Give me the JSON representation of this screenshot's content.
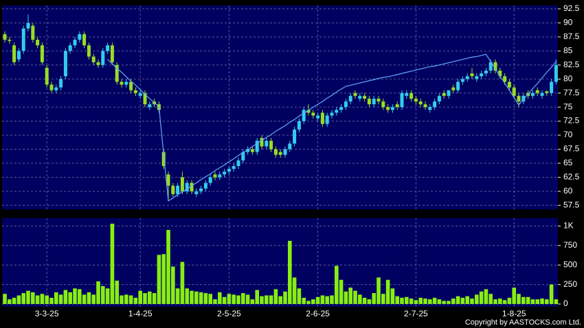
{
  "chart_data": [
    {
      "type": "candlestick",
      "open": [
        88,
        87,
        86,
        83.5,
        85,
        89,
        89.5,
        87,
        86,
        82,
        79,
        78,
        78.5,
        80.5,
        85,
        86,
        87,
        88,
        86,
        84,
        83,
        82.5,
        85,
        86,
        82.5,
        79.5,
        79,
        79.5,
        78,
        77,
        77.5,
        75,
        76,
        75.5,
        67,
        63,
        61,
        59.5,
        62.5,
        60,
        61.5,
        59.5,
        60,
        60.5,
        61.5,
        63,
        62.5,
        63,
        63.5,
        64,
        64.5,
        65.5,
        67,
        67.5,
        67,
        69.5,
        68,
        69,
        67.5,
        67,
        66.5,
        67.5,
        68.5,
        71,
        72.5,
        74.5,
        74,
        73,
        74,
        72,
        73.5,
        74,
        74.5,
        75,
        76,
        77.5,
        76.5,
        77,
        76.5,
        75.5,
        76.5,
        76,
        75,
        74.5,
        75.5,
        75,
        77,
        77.5,
        76.5,
        76,
        75.5,
        74.5,
        75,
        76,
        77.5,
        77,
        78.5,
        78,
        79.5,
        80,
        81,
        80,
        80.5,
        81,
        81.5,
        83,
        81.5,
        80.5,
        79.5,
        78.5,
        77,
        76,
        77.5,
        77,
        78,
        77,
        77.8,
        77.5,
        79.5
      ],
      "high": [
        88.5,
        87.5,
        86.5,
        85.5,
        89.5,
        91.5,
        90,
        87.5,
        86.5,
        82.5,
        79.5,
        79,
        80.5,
        85.5,
        86.5,
        87.5,
        88.5,
        88.5,
        86.5,
        84.5,
        83.5,
        85.5,
        86.5,
        86.5,
        83,
        80,
        80,
        80,
        78.5,
        78,
        78,
        76,
        76.5,
        76,
        67.5,
        63.5,
        61.5,
        61.5,
        63.5,
        62,
        62,
        60.5,
        61,
        62,
        63,
        63.5,
        63.5,
        64,
        64.5,
        65,
        66,
        67.5,
        68,
        68,
        69.5,
        70,
        69.5,
        69.5,
        68,
        67.5,
        68,
        69,
        71.5,
        73,
        75,
        75.5,
        74.5,
        74,
        74.5,
        74,
        74.5,
        75,
        75.5,
        76.5,
        77.5,
        78,
        77.5,
        77.5,
        77,
        77,
        77,
        76.5,
        75.5,
        75.5,
        76,
        78,
        78,
        78,
        77,
        76.5,
        76,
        75.5,
        76.5,
        77.5,
        78,
        78,
        79,
        80,
        80.5,
        81,
        82,
        81,
        81.5,
        82,
        83.5,
        83.5,
        82,
        81,
        80,
        79,
        77.5,
        77.5,
        78,
        78,
        78.5,
        78,
        78,
        80,
        83.5
      ],
      "low": [
        86.5,
        86.3,
        82.5,
        83,
        84.5,
        88.5,
        86.5,
        85.5,
        82.5,
        78.5,
        77.5,
        77.5,
        78,
        80,
        84.5,
        85.5,
        86.5,
        85.5,
        83.5,
        82.5,
        82,
        82,
        84.5,
        82.5,
        79,
        78.5,
        78.5,
        77.5,
        77,
        76.5,
        75,
        74.5,
        75,
        74,
        64,
        58.5,
        59,
        59,
        59.5,
        59.5,
        59.5,
        59,
        59.5,
        60,
        61,
        62,
        62,
        62.5,
        63,
        63.5,
        64,
        65,
        66.5,
        66.5,
        66.5,
        67.5,
        67.5,
        67,
        66,
        66,
        66,
        67,
        68,
        70.5,
        72,
        73.5,
        73,
        72.5,
        71.5,
        71.5,
        73,
        73.5,
        74,
        74.5,
        75.5,
        76.5,
        76,
        76,
        75,
        75,
        75.5,
        74.5,
        74,
        74,
        74.5,
        74.5,
        76.5,
        76,
        75.5,
        75,
        74.5,
        74,
        74.5,
        75.5,
        76.5,
        76.5,
        77.5,
        77.5,
        79,
        79.5,
        80,
        79.5,
        80,
        80.5,
        81,
        81,
        80,
        79,
        78,
        76.5,
        75,
        75.5,
        76.5,
        76.5,
        77,
        76.5,
        77,
        77,
        79
      ],
      "close": [
        87,
        86.8,
        83,
        85,
        89,
        90,
        87,
        86,
        83,
        79,
        78,
        78.5,
        80,
        85,
        86,
        87,
        88,
        86,
        84,
        83,
        82.5,
        85,
        86,
        83,
        79.5,
        79,
        79.5,
        78,
        77.5,
        77.5,
        75.5,
        75.5,
        75.5,
        74.5,
        64.5,
        61,
        59.5,
        61,
        60,
        61.5,
        60,
        60,
        60.5,
        61.5,
        62.5,
        62.5,
        63,
        63.5,
        64,
        64.5,
        65.5,
        67,
        67.5,
        67,
        69,
        68,
        69,
        67.5,
        66.5,
        66.5,
        67.5,
        68.5,
        71,
        72.5,
        74.5,
        74,
        73.5,
        73.5,
        72,
        73.5,
        74,
        74.5,
        75,
        76,
        77,
        77,
        77,
        76.5,
        75.5,
        76.5,
        76,
        75,
        74.5,
        75,
        75,
        77.5,
        77.5,
        76.5,
        76,
        75.5,
        75,
        75,
        76,
        77,
        77,
        78,
        78,
        79.5,
        80,
        80.5,
        80.5,
        80.5,
        81,
        81.5,
        83,
        81.5,
        80.5,
        79.5,
        78.5,
        77,
        76,
        77,
        77,
        77.5,
        77.5,
        77.5,
        77.5,
        79.5,
        82.5
      ],
      "up_color": "#33ccee",
      "down_color": "#99dd22",
      "line": {
        "color": "#66aaff",
        "values": [
          null,
          null,
          null,
          null,
          null,
          null,
          null,
          null,
          null,
          null,
          null,
          null,
          null,
          null,
          null,
          null,
          null,
          null,
          null,
          null,
          null,
          null,
          83.5,
          82.7,
          81.9,
          81.2,
          80.4,
          79.6,
          78.9,
          78.1,
          77.3,
          76.5,
          75.8,
          75,
          66.6,
          58.3,
          58.8,
          59.4,
          59.9,
          60.4,
          61,
          61.5,
          62.1,
          62.6,
          63.1,
          63.7,
          64.2,
          64.7,
          65.3,
          65.8,
          66.4,
          66.9,
          67.4,
          68,
          68.5,
          69.1,
          69.6,
          70.1,
          70.7,
          71.2,
          71.7,
          72.3,
          72.8,
          73.4,
          73.9,
          74.4,
          75,
          75.5,
          76,
          76.6,
          77.1,
          77.7,
          78.2,
          78.7,
          78.9,
          79.1,
          79.3,
          79.5,
          79.7,
          79.9,
          80.1,
          80.3,
          80.4,
          80.6,
          80.8,
          81,
          81.2,
          81.4,
          81.6,
          81.8,
          82,
          82.2,
          82.3,
          82.5,
          82.7,
          82.9,
          83.1,
          83.3,
          83.5,
          83.7,
          83.9,
          84,
          84.2,
          84.4,
          83.1,
          81.8,
          80.5,
          79.3,
          78,
          76.7,
          75.4,
          76.4,
          77.3,
          78.3,
          79.2,
          80.2,
          81.2,
          82.1,
          83.1
        ]
      },
      "ylim": [
        56.8,
        93.1
      ],
      "yticks": [
        57.5,
        60,
        62.5,
        65,
        67.5,
        70,
        72.5,
        75,
        77.5,
        80,
        82.5,
        85,
        87.5,
        90,
        92.5
      ],
      "grid": true
    },
    {
      "type": "bar",
      "categories": [
        null,
        null,
        null,
        null,
        null,
        null,
        null,
        null,
        null,
        "3-3-25",
        null,
        null,
        null,
        null,
        null,
        null,
        null,
        null,
        null,
        null,
        null,
        null,
        null,
        null,
        null,
        null,
        null,
        null,
        null,
        "1-4-25",
        null,
        null,
        null,
        null,
        null,
        null,
        null,
        null,
        null,
        null,
        null,
        null,
        null,
        null,
        null,
        null,
        null,
        null,
        "2-5-25",
        null,
        null,
        null,
        null,
        null,
        null,
        null,
        null,
        null,
        null,
        null,
        null,
        null,
        null,
        null,
        null,
        null,
        null,
        "2-6-25",
        null,
        null,
        null,
        null,
        null,
        null,
        null,
        null,
        null,
        null,
        null,
        null,
        null,
        null,
        null,
        null,
        null,
        null,
        null,
        null,
        "2-7-25",
        null,
        null,
        null,
        null,
        null,
        null,
        null,
        null,
        null,
        null,
        null,
        null,
        null,
        null,
        null,
        null,
        null,
        null,
        null,
        null,
        "1-8-25",
        null,
        null,
        null,
        null,
        null,
        null,
        null,
        null,
        null
      ],
      "values": [
        130,
        60,
        80,
        110,
        140,
        170,
        150,
        110,
        130,
        110,
        80,
        150,
        120,
        180,
        150,
        200,
        190,
        120,
        150,
        120,
        290,
        230,
        200,
        1030,
        300,
        110,
        120,
        110,
        80,
        170,
        140,
        160,
        140,
        630,
        640,
        950,
        480,
        200,
        540,
        200,
        170,
        160,
        150,
        140,
        130,
        60,
        150,
        90,
        130,
        120,
        110,
        140,
        120,
        60,
        180,
        100,
        110,
        110,
        190,
        100,
        160,
        810,
        340,
        200,
        80,
        40,
        60,
        90,
        110,
        100,
        110,
        490,
        310,
        160,
        210,
        170,
        120,
        80,
        60,
        140,
        340,
        130,
        310,
        200,
        100,
        80,
        90,
        70,
        50,
        80,
        70,
        60,
        80,
        60,
        40,
        40,
        70,
        100,
        80,
        100,
        70,
        120,
        160,
        190,
        130,
        60,
        70,
        50,
        80,
        210,
        130,
        90,
        90,
        60,
        60,
        70,
        60,
        250,
        60
      ],
      "color": "#88ee11",
      "ylim": [
        -35,
        1100
      ],
      "yticks": [
        0,
        250,
        500,
        750,
        {
          "value": 1000,
          "label": "1K"
        }
      ],
      "grid": true
    }
  ],
  "copyright": "Copyright by AASTOCKS.com Ltd."
}
